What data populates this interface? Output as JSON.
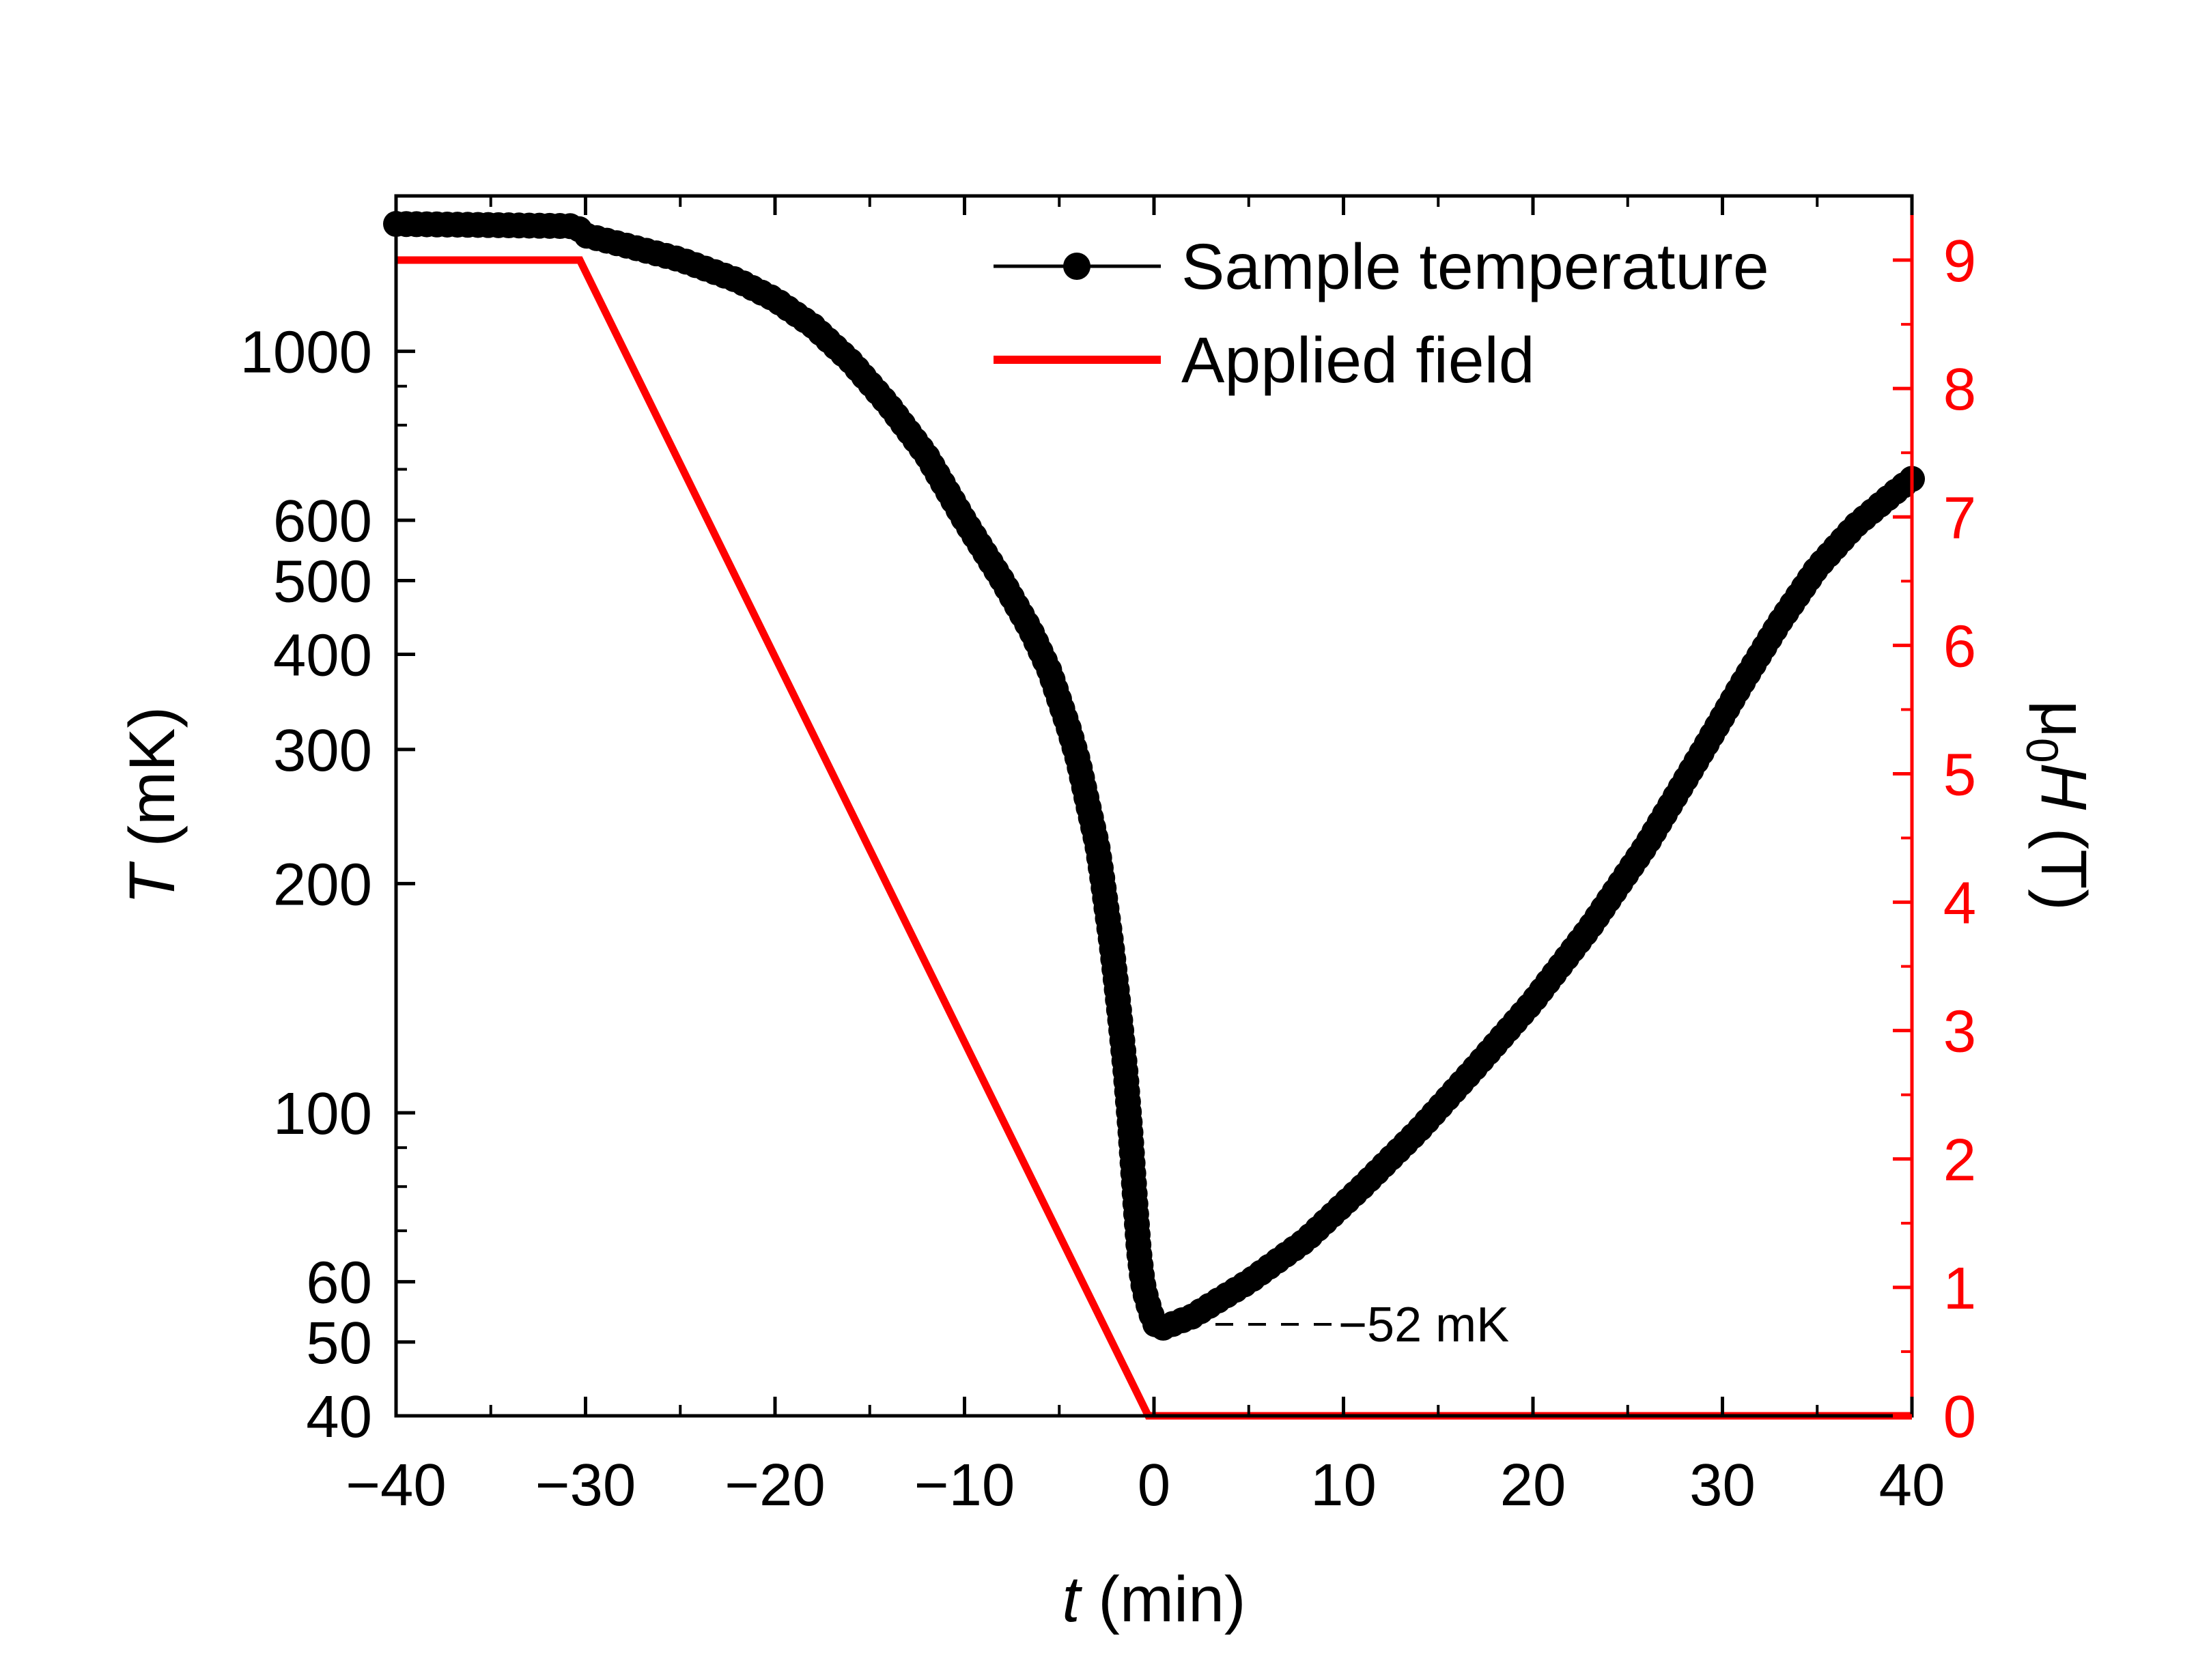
{
  "chart_data": {
    "type": "line",
    "title": "",
    "xlabel": {
      "italic": "t",
      "unit": "(min)"
    },
    "ylabel_left": {
      "italic": "T",
      "unit": "(mK)"
    },
    "ylabel_right": {
      "prefix": "μ",
      "sub": "0",
      "italic": "H",
      "unit": "(T)"
    },
    "xlim": [
      -40,
      40
    ],
    "ylim_left": [
      40,
      1600
    ],
    "ylim_left_scale": "log",
    "ylim_right": [
      0,
      9.5
    ],
    "x_ticks": [
      "−40",
      "−30",
      "−20",
      "−10",
      "0",
      "10",
      "20",
      "30",
      "40"
    ],
    "x_tick_values": [
      -40,
      -30,
      -20,
      -10,
      0,
      10,
      20,
      30,
      40
    ],
    "y_left_ticks": [
      "40",
      "50",
      "60",
      "100",
      "200",
      "300",
      "400",
      "500",
      "600",
      "1000"
    ],
    "y_left_tick_values": [
      40,
      50,
      60,
      100,
      200,
      300,
      400,
      500,
      600,
      1000
    ],
    "y_left_minor_values": [
      70,
      80,
      90,
      700,
      800,
      900
    ],
    "y_right_ticks": [
      "0",
      "1",
      "2",
      "3",
      "4",
      "5",
      "6",
      "7",
      "8",
      "9"
    ],
    "y_right_tick_values": [
      0,
      1,
      2,
      3,
      4,
      5,
      6,
      7,
      8,
      9
    ],
    "legend": {
      "position": "top-right",
      "entries": [
        "Sample temperature",
        "Applied field"
      ]
    },
    "annotation": {
      "text": "−52 mK",
      "x": 0.3,
      "y": 52
    },
    "colors": {
      "temperature": "#000000",
      "field": "#ff0000",
      "right_axis": "#ff0000"
    },
    "series": [
      {
        "name": "Sample temperature",
        "axis": "left",
        "marker": "circle",
        "x": [
          -40,
          -35,
          -30.5,
          -30,
          -28,
          -25,
          -22,
          -20,
          -18,
          -16,
          -14,
          -12,
          -10,
          -8,
          -6.5,
          -5.5,
          -4.5,
          -4,
          -3.5,
          -3,
          -2.75,
          -2.5,
          -2.25,
          -2,
          -1.75,
          -1.5,
          -1.25,
          -1,
          -0.8,
          -0.6,
          -0.4,
          -0.2,
          0,
          0.3,
          2,
          5,
          8,
          11,
          14,
          17,
          20,
          23,
          26,
          29,
          31,
          33,
          35,
          37,
          39,
          40
        ],
        "values": [
          1470,
          1465,
          1460,
          1420,
          1380,
          1320,
          1240,
          1170,
          1080,
          970,
          850,
          730,
          600,
          500,
          430,
          380,
          320,
          290,
          255,
          225,
          205,
          185,
          167,
          148,
          130,
          113,
          95,
          77,
          66,
          60,
          57,
          55,
          53,
          52,
          54,
          60,
          68,
          80,
          95,
          115,
          140,
          175,
          225,
          300,
          365,
          440,
          520,
          590,
          650,
          680
        ]
      },
      {
        "name": "Applied field",
        "axis": "right",
        "marker": "none",
        "x": [
          -40,
          -30.3,
          -0.3,
          40
        ],
        "values": [
          9,
          9,
          0,
          0
        ]
      }
    ]
  }
}
